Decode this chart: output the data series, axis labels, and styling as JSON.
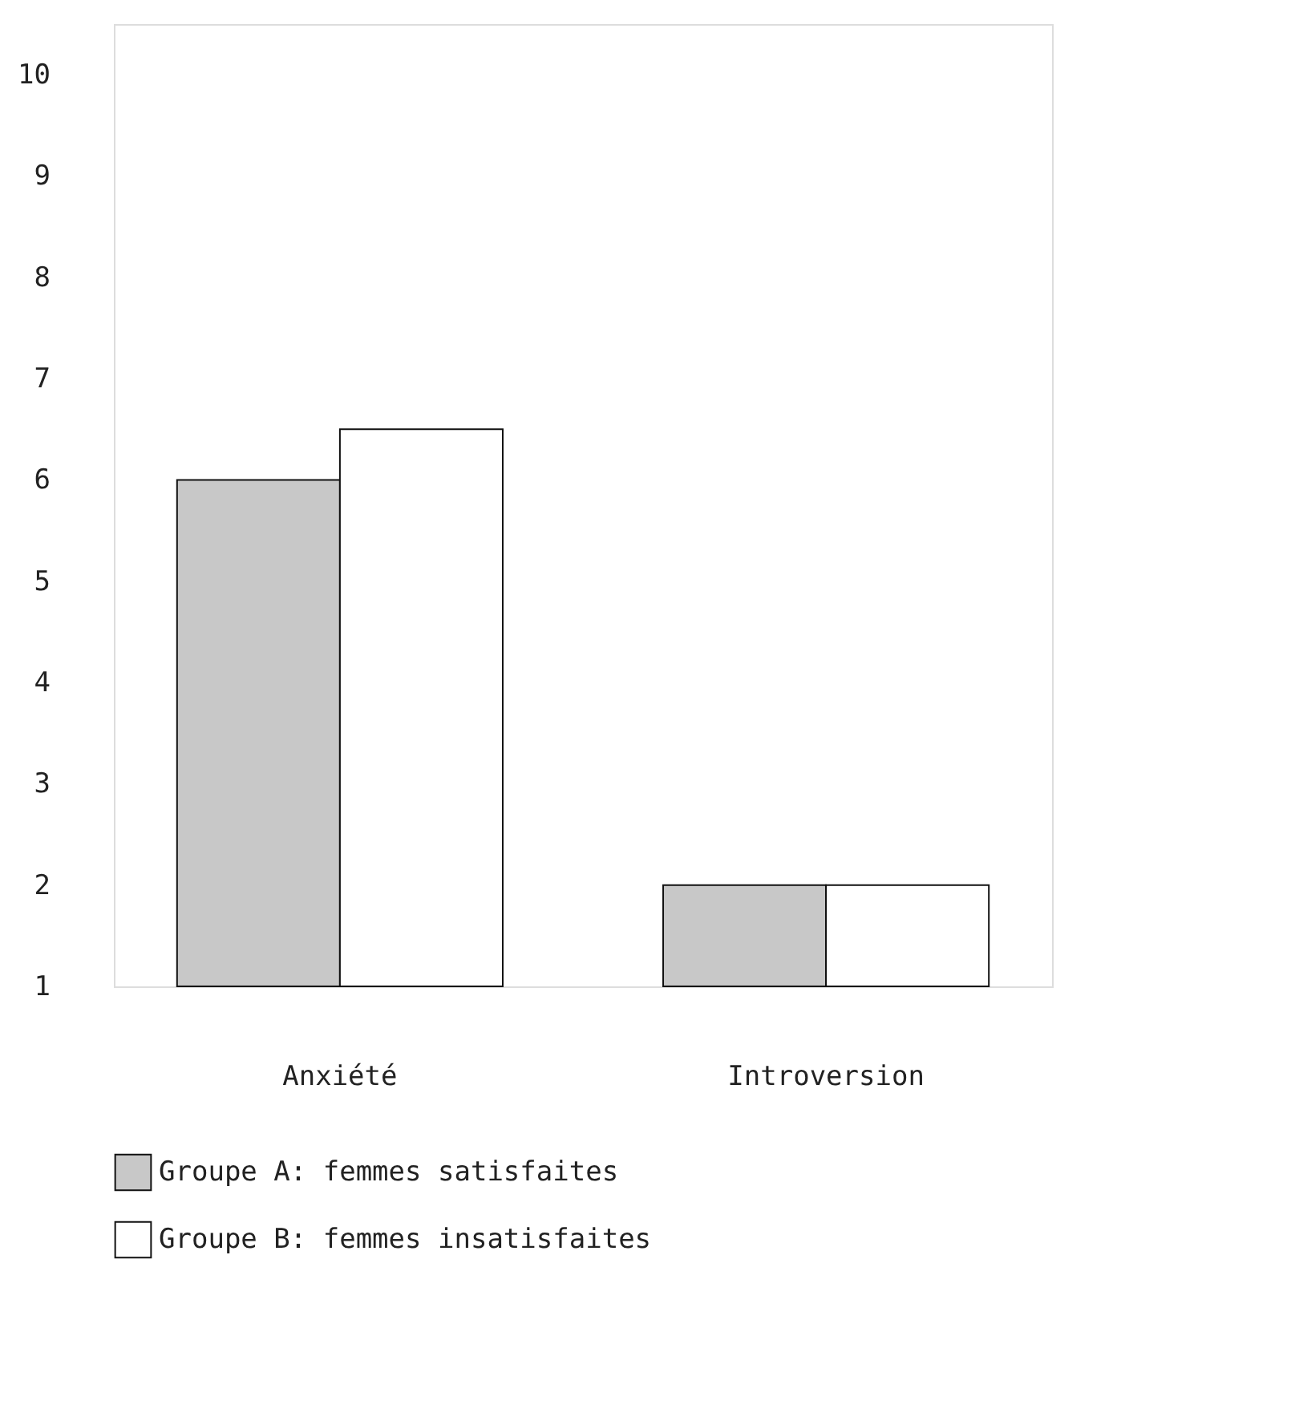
{
  "chart_data": {
    "type": "bar",
    "categories": [
      "Anxiété",
      "Introversion"
    ],
    "series": [
      {
        "name": "Groupe A: femmes satisfaites",
        "color": "#c8c8c8",
        "values": [
          6,
          2
        ]
      },
      {
        "name": "Groupe B: femmes insatisfaites",
        "color": "#ffffff",
        "values": [
          6.5,
          2
        ]
      }
    ],
    "ylim": [
      1,
      10.5
    ],
    "yticks": [
      1,
      2,
      3,
      4,
      5,
      6,
      7,
      8,
      9,
      10
    ],
    "grid": false,
    "legend": "bottom"
  }
}
